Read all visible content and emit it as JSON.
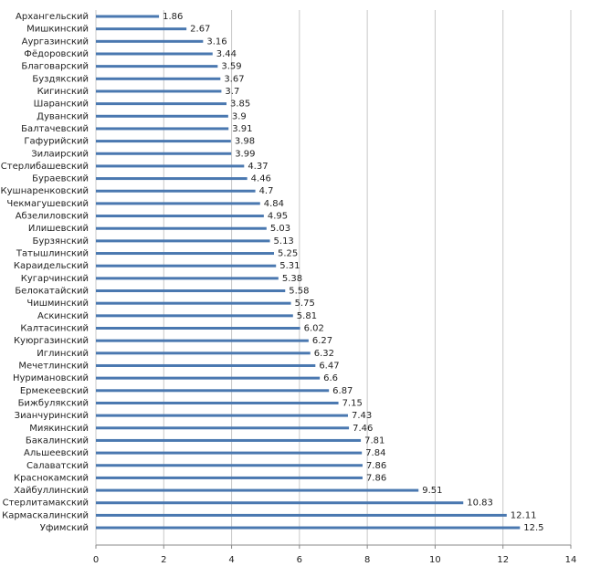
{
  "chart_data": {
    "type": "bar",
    "orientation": "horizontal",
    "categories": [
      "Архангельский",
      "Мишкинский",
      "Аургазинский",
      "Фёдоровский",
      "Благоварский",
      "Буздякский",
      "Кигинский",
      "Шаранский",
      "Дуванский",
      "Балтачевский",
      "Гафурийский",
      "Зилаирский",
      "Стерлибашевский",
      "Бураевский",
      "Кушнаренковский",
      "Чекмагушевский",
      "Абзелиловский",
      "Илишевский",
      "Бурзянский",
      "Татышлинский",
      "Караидельский",
      "Кугарчинский",
      "Белокатайский",
      "Чишминский",
      "Аскинский",
      "Калтасинский",
      "Куюргазинский",
      "Иглинский",
      "Мечетлинский",
      "Нуримановский",
      "Ермекеевский",
      "Бижбулякский",
      "Зианчуринский",
      "Миякинский",
      "Бакалинский",
      "Альшеевский",
      "Салаватский",
      "Краснокамский",
      "Хайбуллинский",
      "Стерлитамакский",
      "Кармаскалинский",
      "Уфимский"
    ],
    "values": [
      1.86,
      2.67,
      3.16,
      3.44,
      3.59,
      3.67,
      3.7,
      3.85,
      3.9,
      3.91,
      3.98,
      3.99,
      4.37,
      4.46,
      4.7,
      4.84,
      4.95,
      5.03,
      5.13,
      5.25,
      5.31,
      5.38,
      5.58,
      5.75,
      5.81,
      6.02,
      6.27,
      6.32,
      6.47,
      6.6,
      6.87,
      7.15,
      7.43,
      7.46,
      7.81,
      7.84,
      7.86,
      7.86,
      9.51,
      10.83,
      12.11,
      12.5
    ],
    "color": "#4a78b0",
    "xlim": [
      0,
      14
    ],
    "xticks": [
      0,
      2,
      4,
      6,
      8,
      10,
      12,
      14
    ],
    "grid": true
  }
}
